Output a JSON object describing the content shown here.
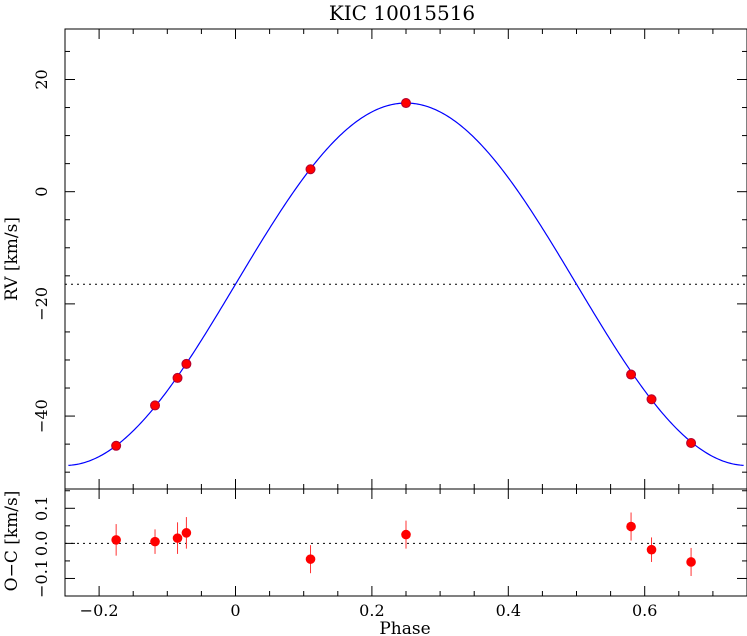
{
  "chart_data": [
    {
      "type": "line",
      "title": "KIC 10015516",
      "xlabel": "Phase",
      "ylabel": "RV [km/s]",
      "xlim": [
        -0.25,
        0.75
      ],
      "ylim": [
        -53,
        29
      ],
      "yticks": [
        20,
        0,
        -20,
        -40
      ],
      "reference_line": {
        "y": -16.5,
        "style": "dotted"
      },
      "series": [
        {
          "kind": "model_curve",
          "color": "#0000ff",
          "model": {
            "gamma": -16.5,
            "K": 32.3,
            "phase_of_max": 0.25
          }
        },
        {
          "kind": "points",
          "color": "#ff0000",
          "x": [
            -0.175,
            -0.118,
            -0.085,
            -0.072,
            0.11,
            0.25,
            0.58,
            0.61,
            0.668
          ],
          "y": [
            -45.3,
            -38.1,
            -33.2,
            -30.7,
            4.0,
            15.8,
            -32.6,
            -37.0,
            -44.8
          ]
        }
      ]
    },
    {
      "type": "scatter",
      "xlabel": "Phase",
      "ylabel": "O−C [km/s]",
      "xlim": [
        -0.25,
        0.75
      ],
      "ylim": [
        -0.15,
        0.155
      ],
      "xticks": [
        -0.2,
        0,
        0.2,
        0.4,
        0.6
      ],
      "xtick_labels": [
        "−0.2",
        "0",
        "0.2",
        "0.4",
        "0.6"
      ],
      "yticks": [
        0.1,
        0.0,
        -0.1
      ],
      "ytick_labels": [
        "0.1",
        "0.0",
        "−0.1"
      ],
      "reference_line": {
        "y": 0,
        "style": "dotted"
      },
      "series": [
        {
          "color": "#ff0000",
          "errorbar_color": "#ff3333",
          "x": [
            -0.175,
            -0.118,
            -0.085,
            -0.072,
            0.11,
            0.25,
            0.58,
            0.61,
            0.668
          ],
          "y": [
            0.01,
            0.005,
            0.015,
            0.03,
            -0.045,
            0.025,
            0.048,
            -0.018,
            -0.053
          ],
          "err": [
            0.045,
            0.035,
            0.045,
            0.045,
            0.04,
            0.04,
            0.04,
            0.035,
            0.04
          ]
        }
      ]
    }
  ]
}
